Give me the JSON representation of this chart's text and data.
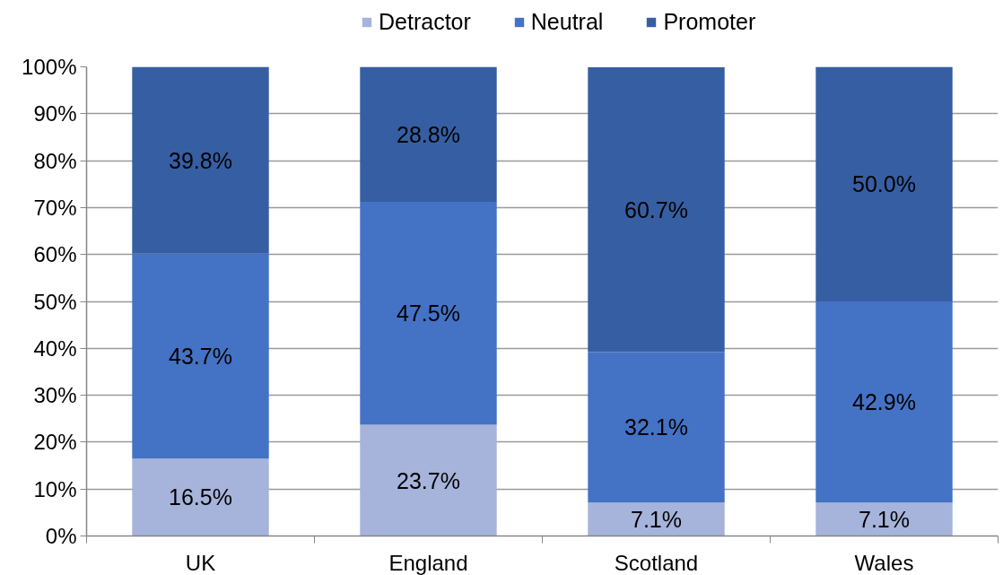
{
  "chart_data": {
    "type": "bar",
    "stacked": true,
    "categories": [
      "UK",
      "England",
      "Scotland",
      "Wales"
    ],
    "series": [
      {
        "name": "Detractor",
        "color": "#a6b3da",
        "values": [
          16.5,
          23.7,
          7.1,
          7.1
        ],
        "value_labels": [
          "16.5%",
          "23.7%",
          "7.1%",
          "7.1%"
        ]
      },
      {
        "name": "Neutral",
        "color": "#4472c4",
        "values": [
          43.7,
          47.5,
          32.1,
          42.9
        ],
        "value_labels": [
          "43.7%",
          "47.5%",
          "32.1%",
          "42.9%"
        ]
      },
      {
        "name": "Promoter",
        "color": "#365ea2",
        "values": [
          39.8,
          28.8,
          60.7,
          50.0
        ],
        "value_labels": [
          "39.8%",
          "28.8%",
          "60.7%",
          "50.0%"
        ]
      }
    ],
    "ylim": [
      0,
      100
    ],
    "yticks": [
      {
        "value": 0,
        "label": "0%"
      },
      {
        "value": 10,
        "label": "10%"
      },
      {
        "value": 20,
        "label": "20%"
      },
      {
        "value": 30,
        "label": "30%"
      },
      {
        "value": 40,
        "label": "40%"
      },
      {
        "value": 50,
        "label": "50%"
      },
      {
        "value": 60,
        "label": "60%"
      },
      {
        "value": 70,
        "label": "70%"
      },
      {
        "value": 80,
        "label": "80%"
      },
      {
        "value": 90,
        "label": "90%"
      },
      {
        "value": 100,
        "label": "100%"
      }
    ],
    "grid": "y",
    "legend": "top"
  }
}
